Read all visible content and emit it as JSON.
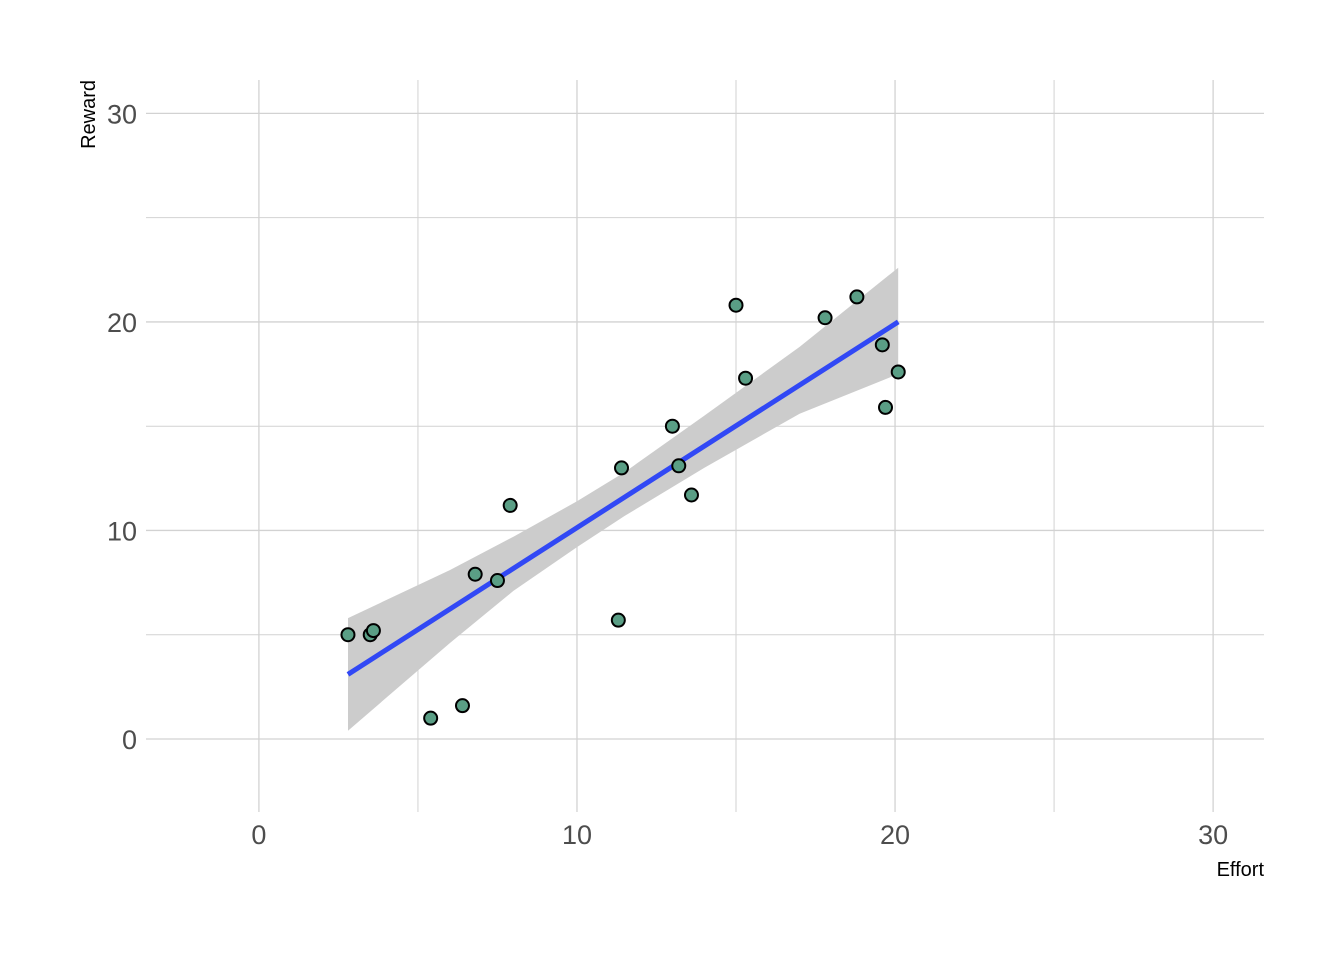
{
  "chart_data": {
    "type": "scatter",
    "title": "",
    "xlabel": "Effort",
    "ylabel": "Reward",
    "xlim": [
      -3.55,
      31.6
    ],
    "ylim": [
      -3.5,
      31.6
    ],
    "x_ticks": [
      0,
      10,
      20,
      30
    ],
    "y_ticks": [
      0,
      10,
      20,
      30
    ],
    "x_tick_labels": [
      "0",
      "10",
      "20",
      "30"
    ],
    "y_tick_labels": [
      "0",
      "10",
      "20",
      "30"
    ],
    "x_minor_ticks": [
      5,
      15,
      25
    ],
    "y_minor_ticks": [
      5,
      15,
      25
    ],
    "grid": true,
    "legend": "none",
    "points": [
      {
        "x": 2.8,
        "y": 5.0
      },
      {
        "x": 3.5,
        "y": 5.0
      },
      {
        "x": 3.6,
        "y": 5.2
      },
      {
        "x": 5.4,
        "y": 1.0
      },
      {
        "x": 6.4,
        "y": 1.6
      },
      {
        "x": 6.8,
        "y": 7.9
      },
      {
        "x": 7.5,
        "y": 7.6
      },
      {
        "x": 7.9,
        "y": 11.2
      },
      {
        "x": 11.3,
        "y": 5.7
      },
      {
        "x": 11.4,
        "y": 13.0
      },
      {
        "x": 13.0,
        "y": 15.0
      },
      {
        "x": 13.2,
        "y": 13.1
      },
      {
        "x": 13.6,
        "y": 11.7
      },
      {
        "x": 15.0,
        "y": 20.8
      },
      {
        "x": 15.3,
        "y": 17.3
      },
      {
        "x": 17.8,
        "y": 20.2
      },
      {
        "x": 18.8,
        "y": 21.2
      },
      {
        "x": 19.6,
        "y": 18.9
      },
      {
        "x": 19.7,
        "y": 15.9
      },
      {
        "x": 20.1,
        "y": 17.6
      }
    ],
    "fit": {
      "method": "lm",
      "x_start": 2.8,
      "x_end": 20.1,
      "y_start": 3.1,
      "y_end": 20.0,
      "band": [
        {
          "x": 2.8,
          "lo": 0.4,
          "hi": 5.8
        },
        {
          "x": 6.0,
          "lo": 4.6,
          "hi": 8.1
        },
        {
          "x": 8.0,
          "lo": 7.1,
          "hi": 9.7
        },
        {
          "x": 10.0,
          "lo": 9.2,
          "hi": 11.4
        },
        {
          "x": 11.5,
          "lo": 10.7,
          "hi": 12.8
        },
        {
          "x": 14.0,
          "lo": 13.0,
          "hi": 15.5
        },
        {
          "x": 17.0,
          "lo": 15.6,
          "hi": 18.8
        },
        {
          "x": 20.1,
          "lo": 17.5,
          "hi": 22.6
        }
      ]
    },
    "colors": {
      "point_fill": "#5a9e85",
      "point_stroke": "#000000",
      "fit_line": "#3148f5",
      "band": "#cccccc",
      "grid": "#d2d2d2",
      "background": "#ffffff"
    }
  }
}
